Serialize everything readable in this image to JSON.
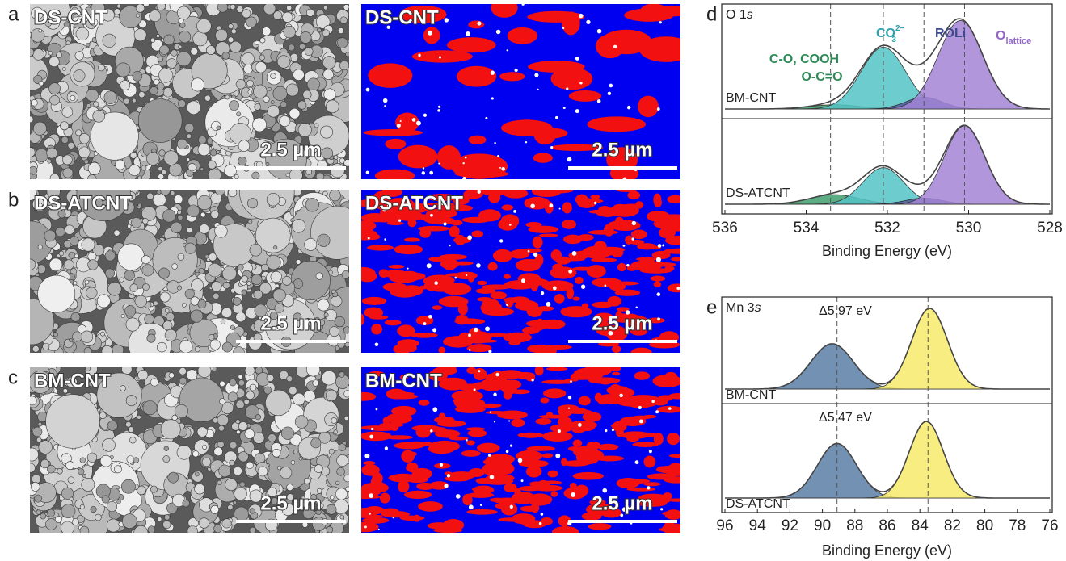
{
  "figure": {
    "rows": [
      {
        "letter": "a",
        "image_label": "DS-CNT",
        "map_label": "DS-CNT",
        "image_scale": "2.5 µm",
        "map_scale": "2.5 µm"
      },
      {
        "letter": "b",
        "image_label": "DS-ATCNT",
        "map_label": "DS-ATCNT",
        "image_scale": "2.5 µm",
        "map_scale": "2.5 µm"
      },
      {
        "letter": "c",
        "image_label": "BM-CNT",
        "map_label": "BM-CNT",
        "image_scale": "2.5 µm",
        "map_scale": "2.5 µm"
      }
    ]
  },
  "chart_data": [
    {
      "type": "xps",
      "panel_label": "d",
      "core_level": "O 1",
      "orbital": "s",
      "xlabel": "Binding Energy (eV)",
      "xlim": [
        536,
        528
      ],
      "xticks": [
        536,
        534,
        532,
        530,
        528
      ],
      "reference_lines": [
        533.4,
        532.1,
        531.1,
        530.1
      ],
      "components": [
        {
          "lines": [
            "C-O, COOH",
            "O-C=O"
          ],
          "color": "#2e8b57",
          "fill": "#3f9e6e"
        },
        {
          "text": "CO",
          "sub": "3",
          "sup": "2−",
          "color": "#2aa3ab",
          "fill": "#52c3c5"
        },
        {
          "text": "ROLi",
          "color": "#3d4a8a",
          "fill": "#4f5c9c"
        },
        {
          "text": "O",
          "sub": "lattice",
          "color": "#9466cc",
          "fill": "#a384d6"
        }
      ],
      "spectra": [
        {
          "name": "BM-CNT",
          "centers": [
            533.3,
            532.1,
            531.1,
            530.2
          ],
          "heights": [
            0.04,
            0.58,
            0.11,
            0.83
          ],
          "widths": [
            0.6,
            0.55,
            0.45,
            0.55
          ]
        },
        {
          "name": "DS-ATCNT",
          "centers": [
            533.3,
            532.1,
            531.1,
            530.1
          ],
          "heights": [
            0.11,
            0.42,
            0.07,
            0.9
          ],
          "widths": [
            0.6,
            0.5,
            0.45,
            0.5
          ]
        }
      ]
    },
    {
      "type": "xps",
      "panel_label": "e",
      "core_level": "Mn 3",
      "orbital": "s",
      "xlabel": "Binding Energy (eV)",
      "xlim": [
        96,
        76
      ],
      "xticks": [
        96,
        94,
        92,
        90,
        88,
        86,
        84,
        82,
        80,
        78,
        76
      ],
      "reference_lines": [
        89.1,
        83.5
      ],
      "components": [
        {
          "fill": "#5b7fa6"
        },
        {
          "fill": "#f7ea6b"
        }
      ],
      "spectra": [
        {
          "name": "BM-CNT",
          "annotation": "Δ5.97 eV",
          "centers": [
            89.4,
            83.4
          ],
          "heights": [
            0.46,
            0.82
          ],
          "widths": [
            1.3,
            1.1
          ]
        },
        {
          "name": "DS-ATCNT",
          "annotation": "Δ5.47 eV",
          "centers": [
            89.1,
            83.6
          ],
          "heights": [
            0.54,
            0.76
          ],
          "widths": [
            1.2,
            1.05
          ]
        }
      ]
    }
  ]
}
